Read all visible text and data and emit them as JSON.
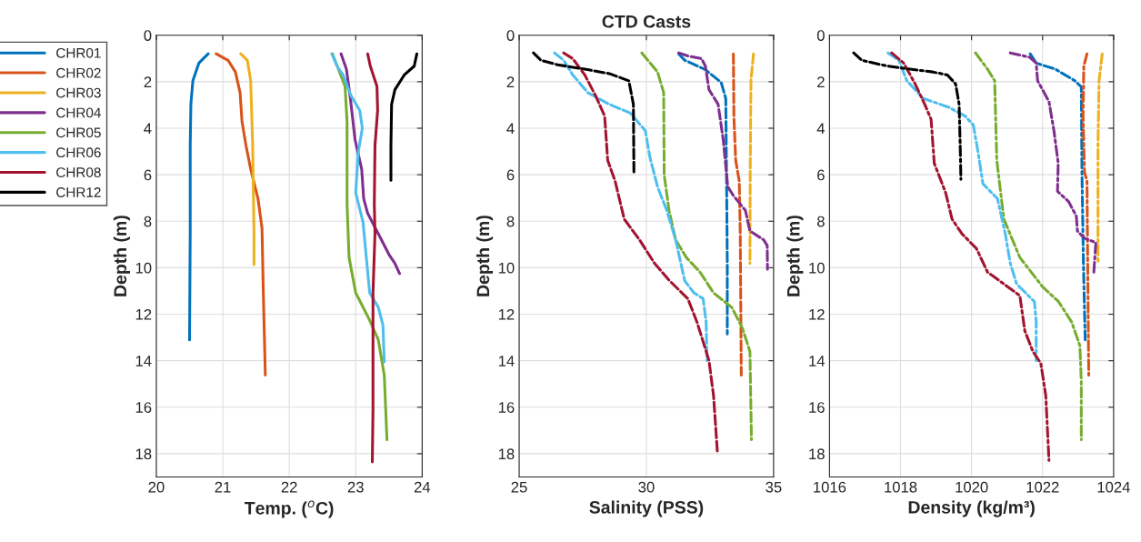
{
  "chart_data": [
    {
      "type": "line",
      "xlabel": "Temp. ($^{o}$C)",
      "ylabel": "Depth (m)",
      "xlim": [
        20,
        24
      ],
      "xticks": [
        20,
        21,
        22,
        23,
        24
      ],
      "ylim": [
        19,
        0
      ],
      "yticks": [
        0,
        2,
        4,
        6,
        8,
        10,
        12,
        14,
        16,
        18
      ],
      "grid": true,
      "legend": "left",
      "line_style": "solid",
      "series": [
        {
          "name": "CHR01",
          "color": "#0072bd",
          "x": [
            20.78,
            20.64,
            20.55,
            20.52,
            20.51,
            20.51,
            20.5
          ],
          "values": [
            0.8,
            1.2,
            1.96,
            2.97,
            4.75,
            8.5,
            13.1
          ]
        },
        {
          "name": "CHR02",
          "color": "#d95319",
          "x": [
            20.9,
            21.08,
            21.19,
            21.26,
            21.29,
            21.35,
            21.42,
            21.53,
            21.59,
            21.61,
            21.64
          ],
          "values": [
            0.8,
            1.08,
            1.58,
            2.47,
            3.73,
            4.75,
            5.76,
            7.03,
            8.29,
            11.08,
            14.62
          ]
        },
        {
          "name": "CHR03",
          "color": "#edb120",
          "x": [
            21.27,
            21.37,
            21.42,
            21.45,
            21.47,
            21.47
          ],
          "values": [
            0.8,
            1.08,
            1.96,
            4.75,
            8.54,
            9.87
          ]
        },
        {
          "name": "CHR04",
          "color": "#7e2f8e",
          "x": [
            22.78,
            22.86,
            22.92,
            22.99,
            23.09,
            23.12,
            23.18,
            23.34,
            23.5,
            23.59,
            23.66
          ],
          "values": [
            0.8,
            1.46,
            2.72,
            4.49,
            5.76,
            7.03,
            7.66,
            8.54,
            9.43,
            9.81,
            10.25
          ]
        },
        {
          "name": "CHR05",
          "color": "#77ac30",
          "x": [
            22.65,
            22.74,
            22.84,
            22.87,
            22.87,
            22.9,
            23.0,
            23.2,
            23.34,
            23.43,
            23.47
          ],
          "values": [
            0.8,
            1.46,
            2.2,
            3.73,
            7.28,
            9.56,
            11.08,
            12.2,
            13.1,
            14.62,
            17.4
          ]
        },
        {
          "name": "CHR06",
          "color": "#4dbeee",
          "x": [
            22.64,
            22.72,
            22.81,
            22.93,
            23.06,
            23.1,
            23.04,
            23.0,
            23.11,
            23.16,
            23.21,
            23.34,
            23.41,
            23.43
          ],
          "values": [
            0.8,
            1.33,
            1.71,
            2.6,
            3.23,
            3.99,
            5.0,
            6.77,
            8.04,
            9.56,
            11.08,
            11.7,
            12.47,
            14.05
          ]
        },
        {
          "name": "CHR08",
          "color": "#a2142f",
          "x": [
            23.18,
            23.22,
            23.32,
            23.33,
            23.29,
            23.28,
            23.29,
            23.26,
            23.26,
            23.26,
            23.25
          ],
          "values": [
            0.8,
            1.33,
            2.2,
            3.23,
            4.75,
            7.28,
            8.54,
            11.08,
            13.6,
            16.1,
            18.35
          ]
        },
        {
          "name": "CHR12",
          "color": "#000000",
          "x": [
            23.92,
            23.88,
            23.73,
            23.59,
            23.54,
            23.53,
            23.53
          ],
          "values": [
            0.8,
            1.33,
            1.71,
            2.34,
            2.97,
            4.75,
            6.24
          ]
        }
      ]
    },
    {
      "type": "line",
      "title": "CTD Casts",
      "xlabel": "Salinity (PSS)",
      "ylabel": "Depth (m)",
      "xlim": [
        25,
        35
      ],
      "xticks": [
        25,
        30,
        35
      ],
      "ylim": [
        19,
        0
      ],
      "yticks": [
        0,
        2,
        4,
        6,
        8,
        10,
        12,
        14,
        16,
        18
      ],
      "grid": true,
      "line_style": "dashed",
      "series": [
        {
          "color": "#0072bd",
          "x": [
            31.27,
            31.51,
            32.29,
            32.94,
            33.12,
            33.15,
            33.18,
            33.18
          ],
          "values": [
            0.8,
            1.08,
            1.46,
            2.03,
            2.72,
            6.01,
            9.81,
            12.85
          ]
        },
        {
          "color": "#d95319",
          "x": [
            33.42,
            33.44,
            33.51,
            33.65,
            33.69,
            33.73
          ],
          "values": [
            0.8,
            3.48,
            5.38,
            6.27,
            8.54,
            14.62
          ]
        },
        {
          "color": "#edb120",
          "x": [
            34.21,
            34.11,
            34.08,
            34.07
          ],
          "values": [
            0.8,
            1.96,
            6.01,
            9.81
          ]
        },
        {
          "color": "#7e2f8e",
          "x": [
            31.27,
            31.63,
            32.17,
            32.32,
            32.46,
            32.82,
            33.02,
            33.2,
            33.42,
            33.89,
            34.07,
            34.61,
            34.75,
            34.76
          ],
          "values": [
            0.76,
            0.89,
            1.01,
            1.33,
            2.34,
            2.97,
            4.49,
            6.52,
            6.9,
            7.53,
            8.42,
            8.8,
            9.05,
            10.06
          ]
        },
        {
          "color": "#77ac30",
          "x": [
            29.82,
            30.44,
            30.68,
            30.7,
            30.89,
            31.15,
            31.57,
            32.11,
            32.64,
            33.36,
            33.77,
            34.07,
            34.13
          ],
          "values": [
            0.76,
            1.58,
            2.47,
            6.01,
            7.53,
            8.8,
            9.56,
            10.19,
            11.08,
            11.71,
            12.59,
            13.6,
            17.4
          ]
        },
        {
          "color": "#4dbeee",
          "x": [
            26.39,
            26.75,
            27.11,
            27.7,
            28.54,
            29.37,
            29.96,
            30.14,
            30.44,
            30.8,
            31.15,
            31.51,
            31.87,
            32.23,
            32.35,
            32.38
          ],
          "values": [
            0.76,
            1.08,
            1.71,
            2.47,
            2.97,
            3.35,
            4.11,
            5.25,
            6.52,
            7.53,
            8.8,
            10.57,
            11.08,
            11.33,
            12.34,
            13.99
          ]
        },
        {
          "color": "#a2142f",
          "x": [
            26.75,
            27.11,
            27.58,
            28.0,
            28.36,
            28.48,
            28.77,
            29.13,
            29.73,
            30.32,
            30.92,
            31.63,
            31.99,
            32.46,
            32.64,
            32.79
          ],
          "values": [
            0.76,
            1.01,
            1.71,
            2.59,
            3.48,
            5.38,
            6.27,
            7.91,
            8.8,
            9.81,
            10.57,
            11.33,
            12.34,
            13.99,
            15.5,
            17.91
          ]
        },
        {
          "color": "#000000",
          "x": [
            25.56,
            25.86,
            26.51,
            27.58,
            28.54,
            29.31,
            29.49,
            29.51
          ],
          "values": [
            0.76,
            1.08,
            1.27,
            1.46,
            1.65,
            1.96,
            2.97,
            5.89
          ]
        }
      ]
    },
    {
      "type": "line",
      "xlabel": "Density (kg/m³)",
      "ylabel": "Depth (m)",
      "xlim": [
        1016,
        1024
      ],
      "xticks": [
        1016,
        1018,
        1020,
        1022,
        1024
      ],
      "ylim": [
        19,
        0
      ],
      "yticks": [
        0,
        2,
        4,
        6,
        8,
        10,
        12,
        14,
        16,
        18
      ],
      "grid": true,
      "line_style": "dashdot",
      "series": [
        {
          "color": "#0072bd",
          "x": [
            1021.65,
            1021.82,
            1022.36,
            1022.91,
            1023.09,
            1023.11,
            1023.15,
            1023.2
          ],
          "values": [
            0.8,
            1.2,
            1.46,
            1.96,
            2.22,
            6.01,
            9.81,
            13.1
          ]
        },
        {
          "color": "#d95319",
          "x": [
            1023.25,
            1023.16,
            1023.14,
            1023.18,
            1023.25,
            1023.27,
            1023.3
          ],
          "values": [
            0.8,
            1.33,
            3.48,
            5.89,
            6.27,
            9.81,
            14.62
          ]
        },
        {
          "color": "#edb120",
          "x": [
            1023.68,
            1023.59,
            1023.56,
            1023.56
          ],
          "values": [
            0.8,
            1.96,
            4.75,
            9.81
          ]
        },
        {
          "color": "#7e2f8e",
          "x": [
            1021.09,
            1021.64,
            1021.82,
            1021.86,
            1022.18,
            1022.32,
            1022.44,
            1022.42,
            1022.73,
            1022.95,
            1022.98,
            1023.18,
            1023.5,
            1023.44
          ],
          "values": [
            0.76,
            0.95,
            1.2,
            1.96,
            2.85,
            4.11,
            5.51,
            6.71,
            7.15,
            7.78,
            8.42,
            8.73,
            8.92,
            10.25
          ]
        },
        {
          "color": "#77ac30",
          "x": [
            1020.11,
            1020.45,
            1020.65,
            1020.71,
            1020.91,
            1021.36,
            1022.0,
            1022.45,
            1022.82,
            1023.05,
            1023.09,
            1023.09
          ],
          "values": [
            0.76,
            1.46,
            1.96,
            5.38,
            7.91,
            9.56,
            10.82,
            11.46,
            12.34,
            13.35,
            14.87,
            17.4
          ]
        },
        {
          "color": "#4dbeee",
          "x": [
            1017.65,
            1017.95,
            1018.18,
            1018.64,
            1019.36,
            1019.82,
            1020.05,
            1020.18,
            1020.32,
            1020.73,
            1020.95,
            1021.09,
            1021.27,
            1021.77,
            1021.82,
            1021.82
          ],
          "values": [
            0.76,
            1.08,
            1.96,
            2.72,
            3.1,
            3.48,
            3.86,
            5.0,
            6.39,
            7.03,
            8.54,
            9.81,
            10.7,
            11.46,
            12.34,
            13.99
          ]
        },
        {
          "color": "#a2142f",
          "x": [
            1017.75,
            1018.09,
            1018.41,
            1018.68,
            1018.86,
            1018.95,
            1019.27,
            1019.45,
            1019.73,
            1020.14,
            1020.45,
            1020.91,
            1021.36,
            1021.5,
            1021.73,
            1021.95,
            1022.09,
            1022.18
          ],
          "values": [
            0.76,
            1.2,
            2.09,
            2.97,
            3.61,
            5.51,
            6.77,
            7.91,
            8.54,
            9.18,
            10.19,
            10.7,
            11.2,
            12.72,
            13.61,
            14.11,
            15.5,
            18.29
          ]
        },
        {
          "color": "#000000",
          "x": [
            1016.68,
            1016.91,
            1017.64,
            1018.27,
            1018.91,
            1019.32,
            1019.55,
            1019.65,
            1019.68,
            1019.7
          ],
          "values": [
            0.76,
            1.08,
            1.33,
            1.46,
            1.58,
            1.71,
            2.09,
            2.97,
            4.75,
            6.2
          ]
        }
      ]
    }
  ]
}
